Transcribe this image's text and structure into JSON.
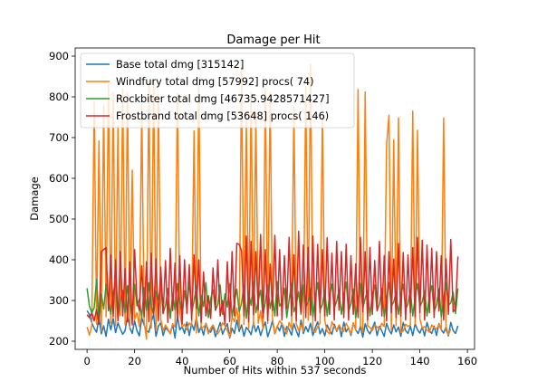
{
  "chart_data": {
    "type": "line",
    "title": "Damage per Hit",
    "xlabel": "Number of Hits within 537 seconds",
    "ylabel": "Damage",
    "xlim": [
      -5,
      163
    ],
    "ylim": [
      180,
      920
    ],
    "xticks": [
      0,
      20,
      40,
      60,
      80,
      100,
      120,
      140,
      160
    ],
    "yticks": [
      200,
      300,
      400,
      500,
      600,
      700,
      800,
      900
    ],
    "grid": false,
    "legend_position": "top-left",
    "n_points": 157,
    "series": [
      {
        "name": "Base total dmg [315142]",
        "color": "#1f77b4",
        "values": [
          275,
          265,
          245,
          232,
          222,
          258,
          218,
          238,
          212,
          254,
          228,
          256,
          221,
          245,
          230,
          217,
          226,
          262,
          234,
          219,
          250,
          226,
          213,
          258,
          240,
          226,
          222,
          247,
          266,
          212,
          237,
          245,
          214,
          233,
          227,
          220,
          241,
          208,
          262,
          228,
          236,
          219,
          247,
          214,
          243,
          227,
          259,
          221,
          236,
          215,
          244,
          226,
          222,
          237,
          211,
          228,
          246,
          217,
          231,
          243,
          208,
          232,
          219,
          252,
          224,
          240,
          212,
          234,
          227,
          216,
          245,
          223,
          238,
          214,
          232,
          247,
          211,
          229,
          250,
          218,
          237,
          225,
          244,
          212,
          236,
          229,
          215,
          243,
          226,
          211,
          252,
          219,
          236,
          223,
          244,
          214,
          233,
          248,
          218,
          231,
          213,
          240,
          226,
          217,
          242,
          224,
          238,
          211,
          247,
          223,
          233,
          214,
          245,
          228,
          219,
          236,
          210,
          243,
          226,
          218,
          232,
          247,
          214,
          237,
          225,
          212,
          244,
          228,
          218,
          240,
          223,
          235,
          212,
          246,
          226,
          219,
          237,
          214,
          243,
          228,
          220,
          235,
          213,
          246,
          226,
          219,
          237,
          214,
          243,
          228,
          220,
          235,
          213,
          246,
          226,
          219,
          238
        ]
      },
      {
        "name": "Windfury total dmg [57992] procs( 74)",
        "color": "#ff7f0e",
        "values": [
          235,
          215,
          238,
          790,
          242,
          692,
          225,
          780,
          260,
          830,
          245,
          812,
          238,
          730,
          263,
          820,
          240,
          810,
          228,
          620,
          253,
          270,
          236,
          780,
          248,
          205,
          836,
          232,
          842,
          229,
          805,
          254,
          226,
          240,
          230,
          218,
          243,
          235,
          808,
          270,
          235,
          242,
          228,
          245,
          238,
          716,
          220,
          845,
          232,
          235,
          242,
          218,
          232,
          240,
          225,
          218,
          228,
          245,
          238,
          226,
          210,
          260,
          248,
          282,
          232,
          872,
          241,
          745,
          232,
          810,
          236,
          762,
          244,
          275,
          230,
          820,
          243,
          810,
          256,
          218,
          236,
          250,
          242,
          232,
          218,
          246,
          230,
          775,
          243,
          226,
          240,
          224,
          826,
          251,
          880,
          228,
          222,
          236,
          244,
          755,
          250,
          224,
          218,
          248,
          235,
          226,
          240,
          230,
          224,
          244,
          232,
          218,
          245,
          228,
          818,
          240,
          222,
          812,
          238,
          234,
          226,
          240,
          235,
          230,
          244,
          236,
          682,
          755,
          228,
          695,
          238,
          748,
          221,
          225,
          242,
          236,
          240,
          765,
          242,
          718,
          255,
          232,
          236,
          228,
          222,
          240,
          233,
          230,
          241,
          228,
          748,
          226,
          216,
          230
        ]
      },
      {
        "name": "Rockbiter total dmg [46735.9428571427]",
        "color": "#2ca02c",
        "values": [
          330,
          286,
          270,
          282,
          352,
          248,
          316,
          279,
          340,
          301,
          266,
          318,
          345,
          255,
          298,
          325,
          270,
          336,
          290,
          262,
          340,
          287,
          304,
          258,
          332,
          276,
          344,
          286,
          265,
          322,
          302,
          340,
          268,
          288,
          330,
          256,
          315,
          277,
          342,
          296,
          262,
          324,
          282,
          348,
          270,
          298,
          336,
          262,
          312,
          285,
          344,
          258,
          304,
          326,
          276,
          290,
          338,
          266,
          316,
          284,
          342,
          260,
          298,
          328,
          272,
          294,
          340,
          256,
          318,
          288,
          345,
          270,
          300,
          325,
          262,
          296,
          338,
          280,
          312,
          262,
          346,
          286,
          296,
          330,
          258,
          302,
          342,
          272,
          290,
          322,
          266,
          338,
          284,
          296,
          328,
          260,
          308,
          344,
          276,
          290,
          325,
          262,
          314,
          340,
          282,
          298,
          326,
          266,
          310,
          345,
          272,
          292,
          328,
          258,
          300,
          342,
          280,
          306,
          324,
          262,
          316,
          338,
          274,
          292,
          330,
          260,
          304,
          344,
          286,
          296,
          322,
          266,
          312,
          340,
          278,
          292,
          326,
          262,
          308,
          342,
          284,
          298,
          324,
          262,
          314,
          336,
          272,
          290,
          328,
          260,
          302,
          344,
          288,
          294,
          320,
          268,
          330
        ]
      },
      {
        "name": "Frostbrand total dmg [53648] procs( 146)",
        "color": "#d62728",
        "values": [
          265,
          258,
          270,
          250,
          278,
          242,
          420,
          425,
          430,
          275,
          412,
          260,
          400,
          250,
          420,
          262,
          378,
          248,
          395,
          240,
          425,
          300,
          275,
          385,
          260,
          395,
          248,
          416,
          262,
          402,
          250,
          382,
          268,
          398,
          246,
          428,
          275,
          392,
          250,
          410,
          242,
          400,
          268,
          388,
          252,
          412,
          280,
          400,
          246,
          370,
          262,
          312,
          256,
          380,
          276,
          400,
          262,
          300,
          242,
          395,
          248,
          420,
          262,
          440,
          438,
          422,
          262,
          458,
          248,
          445,
          266,
          420,
          276,
          462,
          258,
          425,
          250,
          390,
          275,
          460,
          262,
          425,
          252,
          410,
          280,
          455,
          262,
          412,
          250,
          470,
          270,
          436,
          258,
          430,
          264,
          458,
          250,
          438,
          270,
          425,
          262,
          454,
          266,
          416,
          252,
          445,
          276,
          420,
          258,
          438,
          252,
          410,
          266,
          390,
          258,
          455,
          272,
          420,
          252,
          430,
          266,
          398,
          276,
          445,
          262,
          410,
          250,
          420,
          270,
          402,
          258,
          440,
          262,
          418,
          252,
          412,
          270,
          430,
          260,
          455,
          270,
          448,
          252,
          436,
          270,
          428,
          258,
          420,
          274,
          410,
          252,
          402,
          266,
          450,
          272,
          280,
          408
        ]
      }
    ]
  }
}
